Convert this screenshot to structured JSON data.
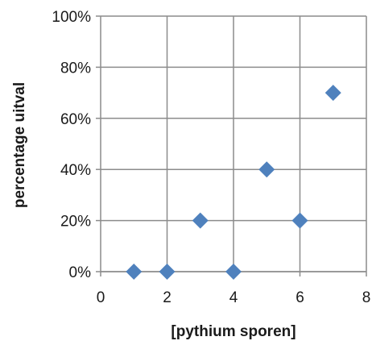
{
  "chart_data": {
    "type": "scatter",
    "title": "",
    "xlabel": "[pythium sporen]",
    "ylabel": "percentage uitval",
    "xlim": [
      0,
      8
    ],
    "ylim": [
      0,
      1
    ],
    "x_ticks": [
      "0",
      "2",
      "4",
      "6",
      "8"
    ],
    "y_ticks": [
      "0%",
      "20%",
      "40%",
      "60%",
      "80%",
      "100%"
    ],
    "grid": true,
    "legend": "none",
    "marker": "diamond",
    "marker_color": "#4f81bd",
    "series": [
      {
        "x": [
          1,
          2,
          3,
          4,
          5,
          6,
          7
        ],
        "y": [
          0.0,
          0.0,
          0.2,
          0.0,
          0.4,
          0.2,
          0.7
        ]
      }
    ]
  }
}
